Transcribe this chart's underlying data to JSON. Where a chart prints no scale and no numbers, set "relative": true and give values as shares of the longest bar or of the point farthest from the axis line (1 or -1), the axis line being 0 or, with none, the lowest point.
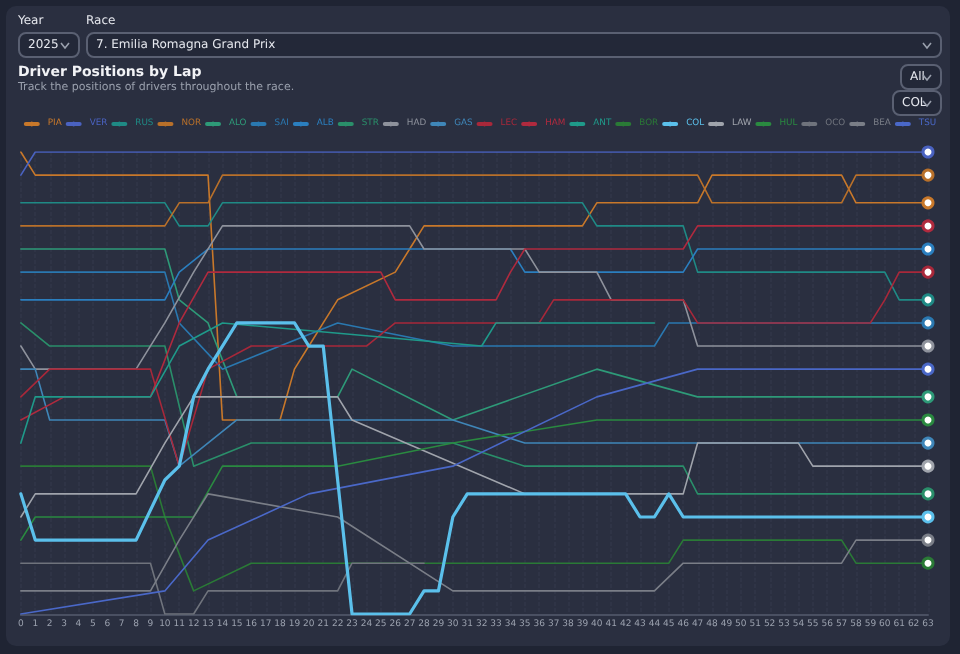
{
  "chart_data": {
    "type": "line",
    "title": "Driver Positions by Lap",
    "subtitle": "Track the positions of drivers throughout the race.",
    "annotations": [
      "Year",
      "2025",
      "Race",
      "7. Emilia Romagna Grand Prix",
      "All",
      "COL"
    ],
    "relative": true,
    "xlim": [
      0,
      63
    ],
    "xticks": [
      0,
      1,
      2,
      3,
      4,
      5,
      6,
      7,
      8,
      9,
      10,
      11,
      12,
      13,
      14,
      15,
      16,
      17,
      18,
      19,
      20,
      21,
      22,
      23,
      24,
      25,
      26,
      27,
      28,
      29,
      30,
      31,
      32,
      33,
      34,
      35,
      36,
      37,
      38,
      39,
      40,
      41,
      42,
      43,
      44,
      45,
      46,
      47,
      48,
      49,
      50,
      51,
      52,
      53,
      54,
      55,
      56,
      57,
      58,
      59,
      60,
      61,
      62,
      63
    ],
    "grid": "x",
    "legend": "top",
    "marker": "none",
    "line_style": "solid",
    "series": [
      {
        "name": "PIA",
        "color": "#c8782a",
        "x": [
          0,
          1,
          13,
          14,
          18,
          19,
          20,
          21,
          22,
          26,
          27,
          28,
          39,
          40,
          47,
          48,
          57,
          58,
          63
        ],
        "values": [
          1,
          0.95,
          0.95,
          0.42,
          0.42,
          0.53,
          0.58,
          0.63,
          0.68,
          0.74,
          0.79,
          0.84,
          0.84,
          0.89,
          0.89,
          0.95,
          0.95,
          0.89,
          0.89
        ]
      },
      {
        "name": "VER",
        "color": "#4a62c0",
        "x": [
          0,
          1,
          63
        ],
        "values": [
          0.95,
          1,
          1
        ]
      },
      {
        "name": "RUS",
        "color": "#1f8a85",
        "x": [
          0,
          10,
          11,
          13,
          14,
          39,
          40,
          46,
          47,
          60,
          61,
          63
        ],
        "values": [
          0.89,
          0.89,
          0.84,
          0.84,
          0.89,
          0.89,
          0.84,
          0.84,
          0.74,
          0.74,
          0.68,
          0.68
        ]
      },
      {
        "name": "NOR",
        "color": "#b8702a",
        "x": [
          0,
          10,
          11,
          13,
          14,
          47,
          48,
          57,
          58,
          63
        ],
        "values": [
          0.84,
          0.84,
          0.89,
          0.89,
          0.95,
          0.95,
          0.89,
          0.89,
          0.95,
          0.95
        ]
      },
      {
        "name": "ALO",
        "color": "#2e9a78",
        "x": [
          0,
          10,
          11,
          13,
          15,
          22,
          23,
          30,
          40,
          47,
          63
        ],
        "values": [
          0.79,
          0.79,
          0.68,
          0.63,
          0.47,
          0.47,
          0.53,
          0.42,
          0.53,
          0.47,
          0.47
        ]
      },
      {
        "name": "SAI",
        "color": "#2a78b0",
        "x": [
          0,
          10,
          11,
          14,
          22,
          30,
          44,
          45,
          63
        ],
        "values": [
          0.74,
          0.74,
          0.63,
          0.53,
          0.63,
          0.58,
          0.58,
          0.63,
          0.63
        ]
      },
      {
        "name": "ALB",
        "color": "#2b7fbf",
        "x": [
          0,
          10,
          11,
          13,
          34,
          35,
          46,
          47,
          63
        ],
        "values": [
          0.68,
          0.68,
          0.74,
          0.79,
          0.79,
          0.74,
          0.74,
          0.79,
          0.79
        ]
      },
      {
        "name": "STR",
        "color": "#2a8f6a",
        "x": [
          0,
          2,
          10,
          12,
          16,
          30,
          35,
          46,
          47,
          63
        ],
        "values": [
          0.63,
          0.58,
          0.58,
          0.32,
          0.37,
          0.37,
          0.32,
          0.32,
          0.26,
          0.26
        ]
      },
      {
        "name": "HAD",
        "color": "#8e929c",
        "x": [
          0,
          1,
          8,
          10,
          12,
          14,
          27,
          28,
          35,
          36,
          40,
          41,
          46,
          47,
          63
        ],
        "values": [
          0.58,
          0.53,
          0.53,
          0.63,
          0.74,
          0.84,
          0.84,
          0.79,
          0.79,
          0.74,
          0.74,
          0.68,
          0.68,
          0.58,
          0.58
        ]
      },
      {
        "name": "GAS",
        "color": "#3f86b8",
        "x": [
          0,
          1,
          2,
          10,
          11,
          15,
          30,
          35,
          63
        ],
        "values": [
          0.53,
          0.53,
          0.42,
          0.42,
          0.32,
          0.42,
          0.42,
          0.37,
          0.37
        ]
      },
      {
        "name": "LEC",
        "color": "#a8283a",
        "x": [
          0,
          2,
          9,
          11,
          13,
          16,
          24,
          26,
          36,
          37,
          46,
          47,
          59,
          60,
          61,
          63
        ],
        "values": [
          0.47,
          0.53,
          0.53,
          0.32,
          0.53,
          0.58,
          0.58,
          0.63,
          0.63,
          0.68,
          0.68,
          0.63,
          0.63,
          0.68,
          0.74,
          0.74
        ]
      },
      {
        "name": "HAM",
        "color": "#b02a3e",
        "x": [
          0,
          3,
          9,
          11,
          13,
          25,
          26,
          33,
          34,
          35,
          46,
          47,
          63
        ],
        "values": [
          0.42,
          0.47,
          0.47,
          0.63,
          0.74,
          0.74,
          0.68,
          0.68,
          0.74,
          0.79,
          0.79,
          0.84,
          0.84
        ]
      },
      {
        "name": "ANT",
        "color": "#1f9a8a",
        "x": [
          0,
          1,
          9,
          11,
          14,
          32,
          33,
          44
        ],
        "values": [
          0.37,
          0.47,
          0.47,
          0.58,
          0.63,
          0.58,
          0.63,
          0.63
        ]
      },
      {
        "name": "BOR",
        "color": "#2a7a36",
        "x": [
          0,
          9,
          10,
          12,
          16,
          45,
          46,
          57,
          58,
          63
        ],
        "values": [
          0.32,
          0.32,
          0.21,
          0.05,
          0.11,
          0.11,
          0.16,
          0.16,
          0.11,
          0.11
        ]
      },
      {
        "name": "COL",
        "color": "#5bc0eb",
        "x": [
          0,
          1,
          8,
          10,
          11,
          12,
          13,
          14,
          15,
          19,
          20,
          21,
          23,
          27,
          28,
          29,
          30,
          31,
          42,
          43,
          44,
          45,
          46,
          63
        ],
        "values": [
          0.26,
          0.16,
          0.16,
          0.29,
          0.32,
          0.47,
          0.53,
          0.58,
          0.63,
          0.63,
          0.58,
          0.58,
          0,
          0,
          0.05,
          0.05,
          0.21,
          0.26,
          0.26,
          0.21,
          0.21,
          0.26,
          0.21,
          0.21
        ]
      },
      {
        "name": "LAW",
        "color": "#a0a4ac",
        "x": [
          0,
          1,
          8,
          10,
          12,
          22,
          23,
          35,
          46,
          47,
          54,
          55,
          63
        ],
        "values": [
          0.21,
          0.26,
          0.26,
          0.37,
          0.47,
          0.47,
          0.42,
          0.26,
          0.26,
          0.37,
          0.37,
          0.32,
          0.32
        ]
      },
      {
        "name": "HUL",
        "color": "#2a8a40",
        "x": [
          0,
          1,
          12,
          14,
          22,
          30,
          40,
          63
        ],
        "values": [
          0.16,
          0.21,
          0.21,
          0.32,
          0.32,
          0.37,
          0.42,
          0.42
        ]
      },
      {
        "name": "OCO",
        "color": "#6f737c",
        "x": [
          0,
          9,
          10,
          12,
          13,
          22,
          23,
          28
        ],
        "values": [
          0.11,
          0.11,
          0,
          0,
          0.05,
          0.05,
          0.11,
          0.11
        ]
      },
      {
        "name": "BEA",
        "color": "#7a7e87",
        "x": [
          0,
          9,
          11,
          13,
          22,
          30,
          44,
          46,
          57,
          58,
          63
        ],
        "values": [
          0.05,
          0.05,
          0.16,
          0.26,
          0.21,
          0.05,
          0.05,
          0.11,
          0.11,
          0.16,
          0.16
        ]
      },
      {
        "name": "TSU",
        "color": "#4a68c8",
        "x": [
          0,
          10,
          13,
          20,
          30,
          40,
          47,
          63
        ],
        "values": [
          0,
          0.05,
          0.16,
          0.26,
          0.32,
          0.47,
          0.53,
          0.53
        ]
      }
    ]
  }
}
